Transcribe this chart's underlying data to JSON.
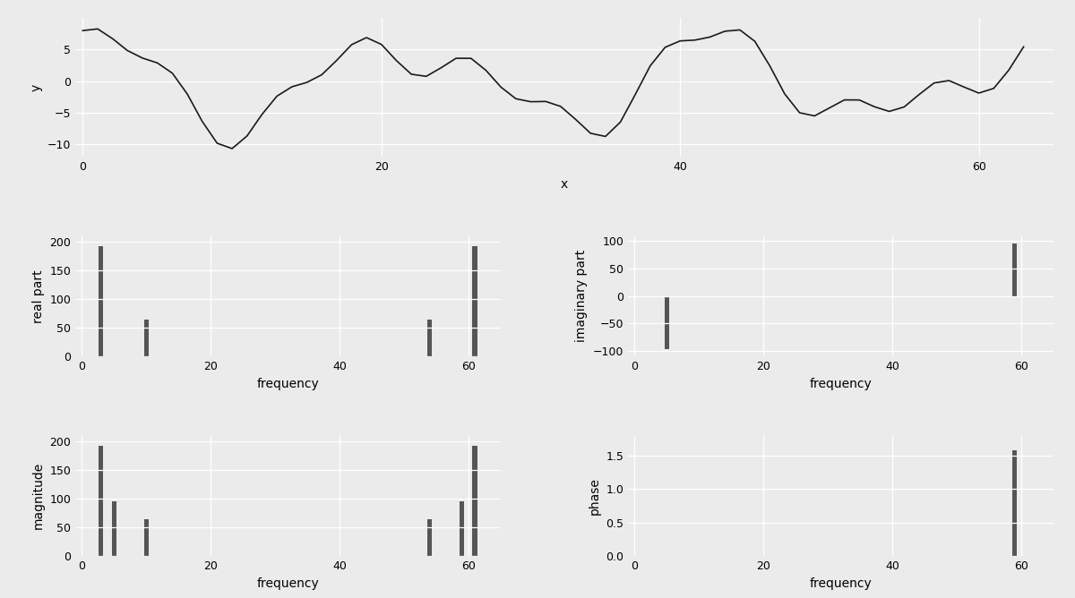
{
  "N": 64,
  "bg_color": "#ebebeb",
  "line_color": "#1a1a1a",
  "bar_color": "#555555",
  "xlabel_time": "x",
  "ylabel_time": "y",
  "xlabel_freq": "frequency",
  "ylabel_real": "real part",
  "ylabel_imag": "imaginary part",
  "ylabel_mag": "magnitude",
  "ylabel_phase": "phase",
  "cos1_freq": 3,
  "cos1_amp": 6.0,
  "cos2_freq": 10,
  "cos2_amp": 2.0,
  "sin1_freq": 5,
  "sin1_amp": 3.0
}
